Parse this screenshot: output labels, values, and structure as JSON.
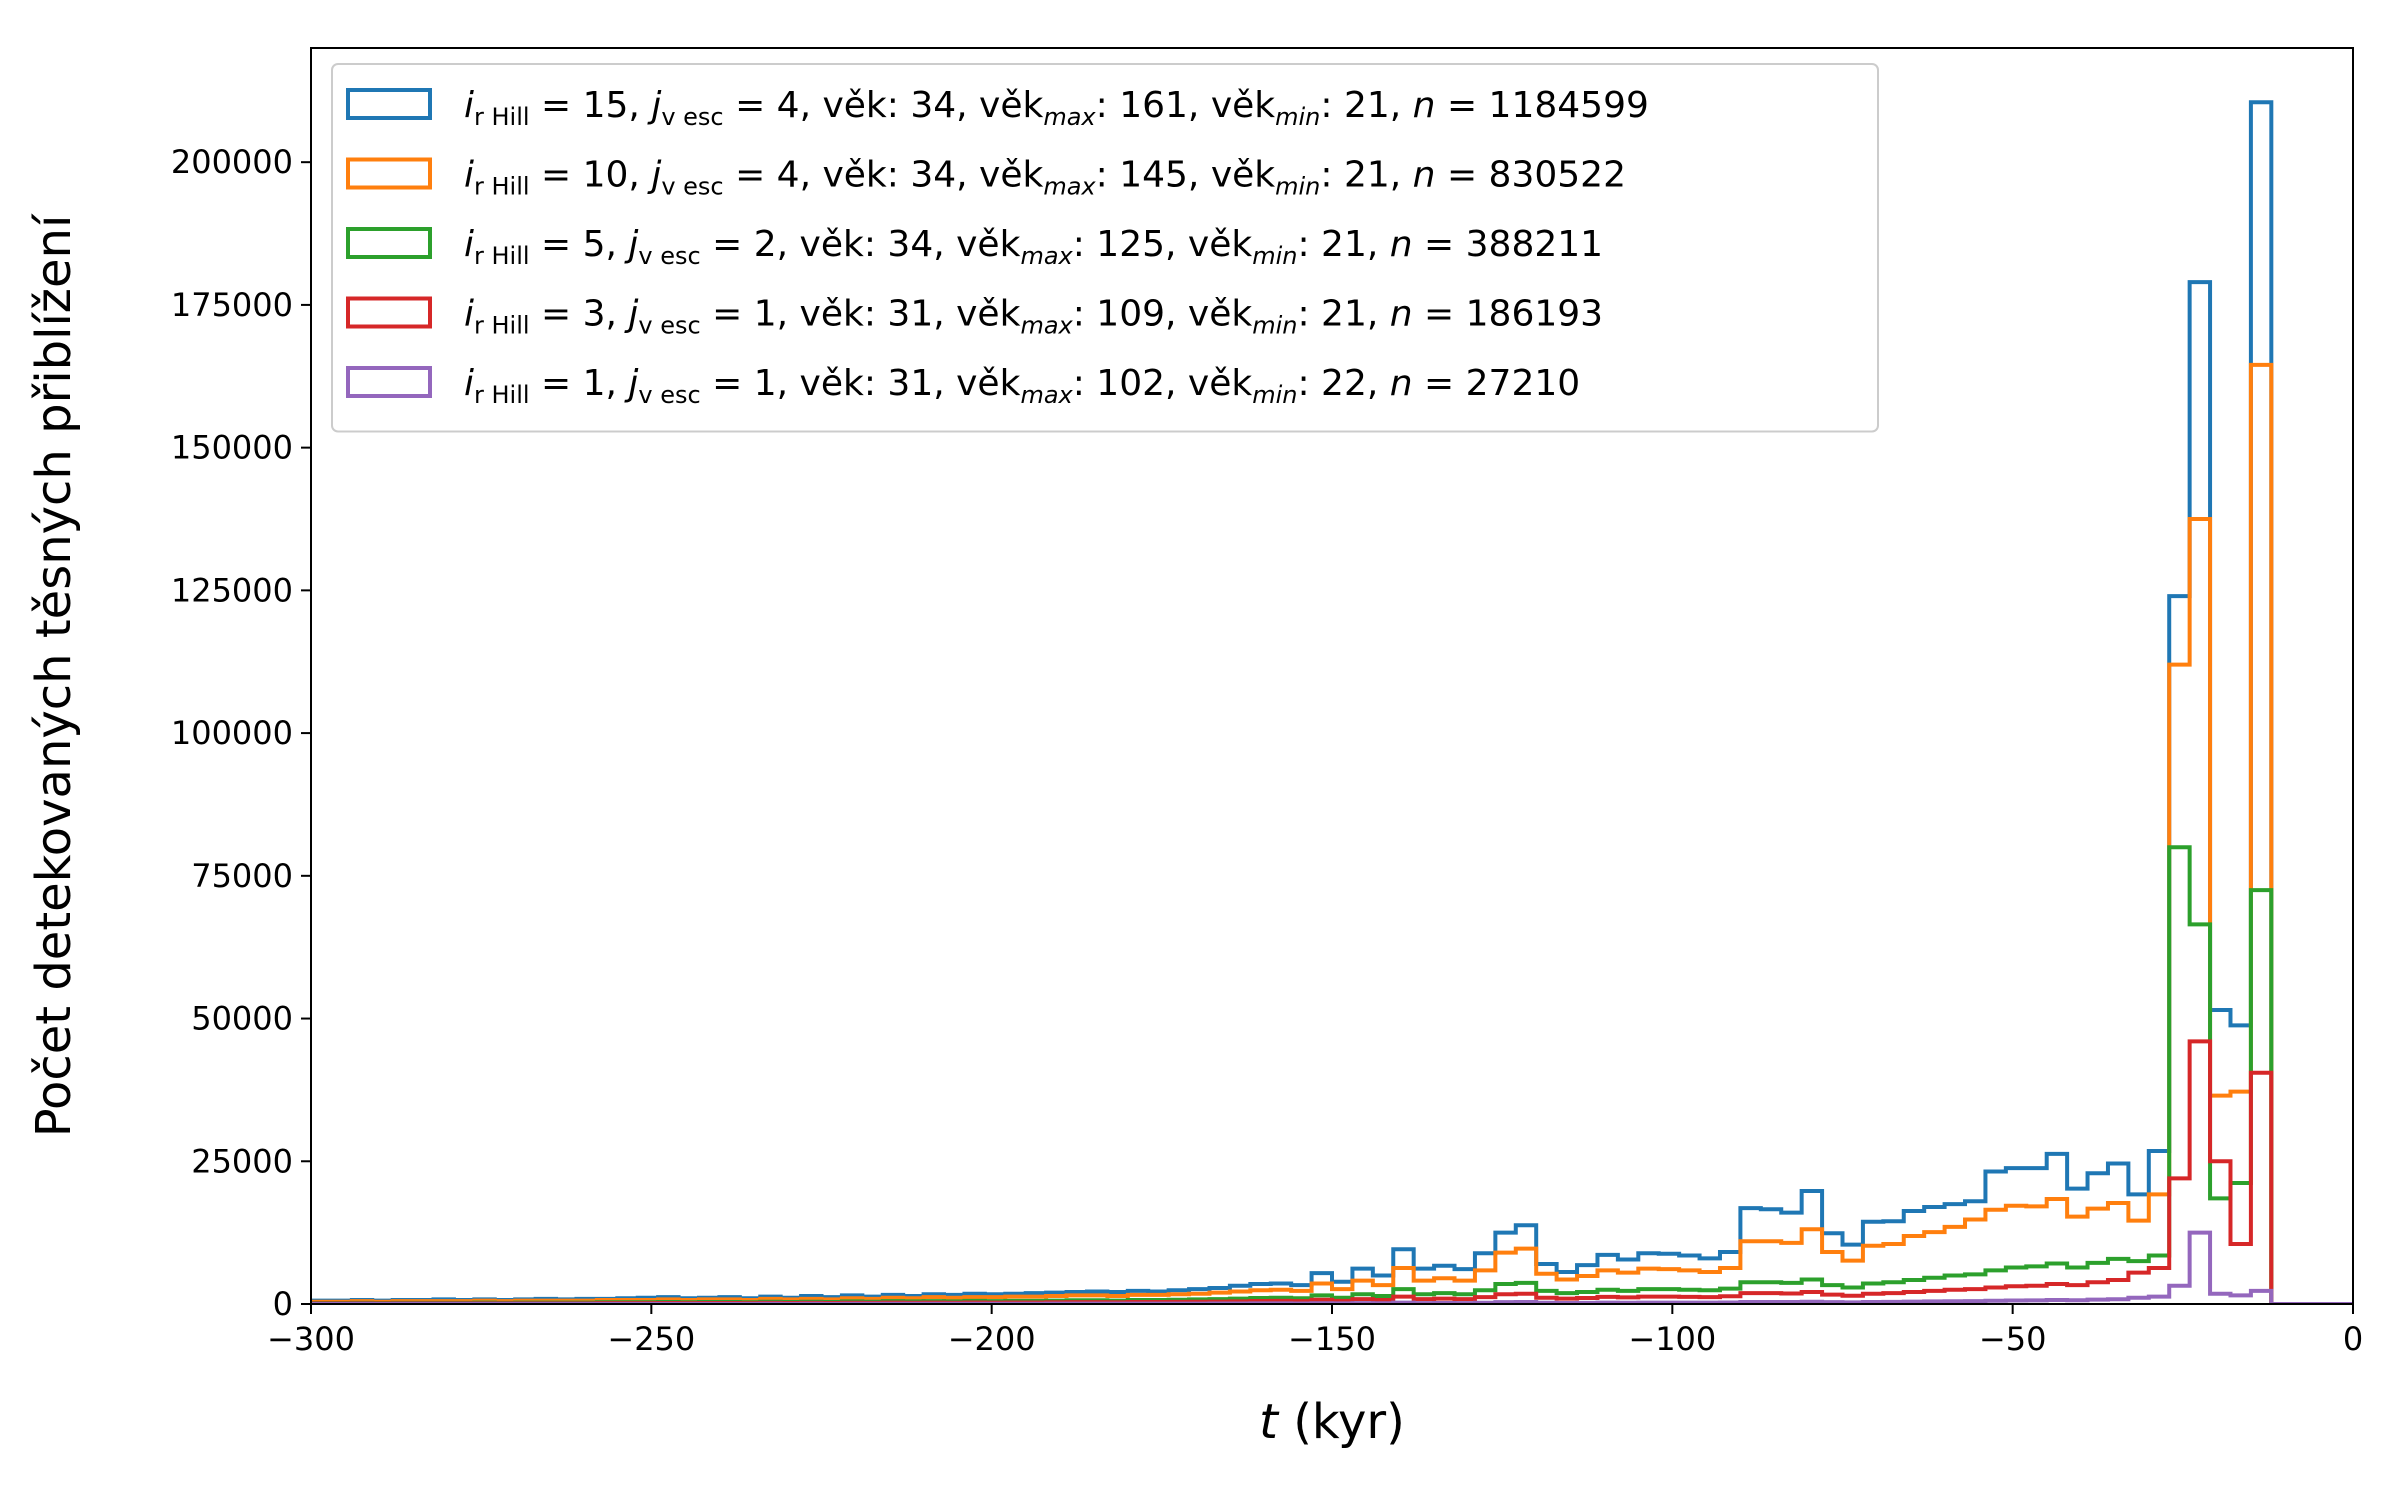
{
  "chart_data": {
    "type": "histogram-step",
    "title": "",
    "xlabel_var": "t",
    "xlabel_unit": "(kyr)",
    "ylabel": "Počet detekovaných těsných přiblížení",
    "xlim": [
      -300,
      0
    ],
    "ylim": [
      0,
      220000
    ],
    "x_ticks": [
      -300,
      -250,
      -200,
      -150,
      -100,
      -50,
      0
    ],
    "x_tick_labels": [
      "−300",
      "−250",
      "−200",
      "−150",
      "−100",
      "−50",
      "0"
    ],
    "y_ticks": [
      0,
      25000,
      50000,
      75000,
      100000,
      125000,
      150000,
      175000,
      200000
    ],
    "y_tick_labels": [
      "0",
      "25000",
      "50000",
      "75000",
      "100000",
      "125000",
      "150000",
      "175000",
      "200000"
    ],
    "legend_position": "upper-left",
    "bin_edges": [
      -300,
      -297,
      -294,
      -291,
      -288,
      -285,
      -282,
      -279,
      -276,
      -273,
      -270,
      -267,
      -264,
      -261,
      -258,
      -255,
      -252,
      -249,
      -246,
      -243,
      -240,
      -237,
      -234,
      -231,
      -228,
      -225,
      -222,
      -219,
      -216,
      -213,
      -210,
      -207,
      -204,
      -201,
      -198,
      -195,
      -192,
      -189,
      -186,
      -183,
      -180,
      -177,
      -174,
      -171,
      -168,
      -165,
      -162,
      -159,
      -156,
      -153,
      -150,
      -147,
      -144,
      -141,
      -138,
      -135,
      -132,
      -129,
      -126,
      -123,
      -120,
      -117,
      -114,
      -111,
      -108,
      -105,
      -102,
      -99,
      -96,
      -93,
      -90,
      -87,
      -84,
      -81,
      -78,
      -75,
      -72,
      -69,
      -66,
      -63,
      -60,
      -57,
      -54,
      -51,
      -48,
      -45,
      -42,
      -39,
      -36,
      -33,
      -30,
      -27,
      -24,
      -21,
      -18,
      -15,
      -12,
      -9,
      -6,
      -3,
      0
    ],
    "series": [
      {
        "name_prefix": "i",
        "name_sub": "r Hill",
        "name_main": " = 15, ",
        "name_j": "j",
        "name_jsub": "v esc",
        "name_rest1": " = 4, věk:  34, věk",
        "name_max": "max",
        "name_rest2": ": 161, věk",
        "name_min": "min",
        "name_rest3": ": 21, ",
        "name_n": "n",
        "name_rest4": " = 1184599",
        "color": "#1f77b4",
        "values": [
          600,
          600,
          700,
          600,
          700,
          700,
          800,
          700,
          800,
          700,
          800,
          900,
          800,
          900,
          900,
          1000,
          1100,
          1200,
          1000,
          1100,
          1200,
          1000,
          1300,
          1100,
          1400,
          1200,
          1500,
          1300,
          1600,
          1400,
          1700,
          1600,
          1800,
          1700,
          1800,
          1900,
          2000,
          2100,
          2200,
          2100,
          2300,
          2200,
          2400,
          2600,
          2800,
          3200,
          3500,
          3600,
          3300,
          5400,
          3900,
          6200,
          5000,
          9600,
          6200,
          6700,
          6100,
          8900,
          12500,
          13800,
          7000,
          5600,
          6800,
          8600,
          7800,
          8900,
          8800,
          8500,
          8000,
          9100,
          16800,
          16600,
          16000,
          19800,
          12400,
          10400,
          14400,
          14500,
          16300,
          17000,
          17500,
          18000,
          23200,
          23800,
          23800,
          26300,
          20200,
          22900,
          24600,
          19200,
          26800,
          124000,
          179000,
          51500,
          48800,
          210500,
          0,
          0,
          0,
          0,
          0,
          0,
          0,
          0,
          0
        ]
      },
      {
        "name_prefix": "i",
        "name_sub": "r Hill",
        "name_main": " = 10, ",
        "name_j": "j",
        "name_jsub": "v esc",
        "name_rest1": " = 4, věk:  34, věk",
        "name_max": "max",
        "name_rest2": ": 145, věk",
        "name_min": "min",
        "name_rest3": ": 21, ",
        "name_n": "n",
        "name_rest4": " = 830522",
        "color": "#ff7f0e",
        "values": [
          400,
          400,
          500,
          400,
          500,
          500,
          500,
          500,
          600,
          500,
          600,
          600,
          600,
          600,
          700,
          700,
          700,
          800,
          700,
          800,
          800,
          700,
          900,
          800,
          900,
          800,
          1000,
          900,
          1100,
          1000,
          1200,
          1100,
          1200,
          1200,
          1300,
          1300,
          1400,
          1500,
          1500,
          1400,
          1600,
          1600,
          1700,
          1800,
          2000,
          2200,
          2400,
          2500,
          2300,
          3600,
          2600,
          4100,
          3300,
          6300,
          4100,
          4500,
          4100,
          5900,
          9000,
          9700,
          5300,
          4300,
          4900,
          5900,
          5500,
          6200,
          6100,
          5900,
          5600,
          6300,
          11000,
          11000,
          10700,
          13100,
          9100,
          7600,
          10200,
          10500,
          11900,
          12600,
          13500,
          14800,
          16500,
          17200,
          17100,
          18400,
          15300,
          16700,
          17700,
          14600,
          19200,
          112000,
          137500,
          36500,
          37200,
          164500,
          0,
          0,
          0,
          0,
          0,
          0,
          0,
          0,
          0
        ]
      },
      {
        "name_prefix": "i",
        "name_sub": "r Hill",
        "name_main": " =  5, ",
        "name_j": "j",
        "name_jsub": "v esc",
        "name_rest1": " = 2, věk:  34, věk",
        "name_max": "max",
        "name_rest2": ": 125, věk",
        "name_min": "min",
        "name_rest3": ": 21, ",
        "name_n": "n",
        "name_rest4": " = 388211",
        "color": "#2ca02c",
        "values": [
          150,
          150,
          200,
          150,
          200,
          200,
          200,
          200,
          250,
          200,
          250,
          250,
          250,
          250,
          300,
          300,
          300,
          350,
          300,
          350,
          350,
          300,
          400,
          350,
          400,
          350,
          450,
          400,
          500,
          450,
          500,
          450,
          550,
          500,
          550,
          550,
          600,
          650,
          650,
          600,
          700,
          700,
          750,
          800,
          850,
          950,
          1050,
          1100,
          1000,
          1500,
          1100,
          1700,
          1400,
          2600,
          1700,
          1900,
          1700,
          2400,
          3500,
          3700,
          2300,
          1900,
          2100,
          2500,
          2300,
          2600,
          2600,
          2500,
          2400,
          2700,
          3800,
          3800,
          3700,
          4300,
          3300,
          2900,
          3600,
          3800,
          4200,
          4600,
          5000,
          5200,
          5900,
          6400,
          6600,
          7100,
          6400,
          7200,
          7900,
          7500,
          8500,
          80000,
          66500,
          18500,
          21200,
          72500,
          0,
          0,
          0,
          0,
          0,
          0,
          0,
          0,
          0
        ]
      },
      {
        "name_prefix": "i",
        "name_sub": "r Hill",
        "name_main": " =  3, ",
        "name_j": "j",
        "name_jsub": "v esc",
        "name_rest1": " = 1, věk:  31, věk",
        "name_max": "max",
        "name_rest2": ": 109, věk",
        "name_min": "min",
        "name_rest3": ": 21, ",
        "name_n": "n",
        "name_rest4": " = 186193",
        "color": "#d62728",
        "values": [
          80,
          80,
          100,
          80,
          100,
          100,
          100,
          100,
          120,
          100,
          120,
          120,
          120,
          120,
          150,
          150,
          150,
          170,
          150,
          170,
          170,
          150,
          200,
          170,
          200,
          170,
          220,
          200,
          250,
          220,
          250,
          220,
          270,
          250,
          270,
          270,
          300,
          320,
          320,
          300,
          350,
          350,
          370,
          400,
          420,
          470,
          520,
          550,
          500,
          750,
          550,
          850,
          700,
          1300,
          850,
          950,
          850,
          1200,
          1700,
          1800,
          1100,
          950,
          1050,
          1250,
          1150,
          1300,
          1300,
          1250,
          1200,
          1350,
          1900,
          1900,
          1850,
          2100,
          1650,
          1450,
          1800,
          1900,
          2100,
          2300,
          2500,
          2600,
          2900,
          3100,
          3200,
          3500,
          3300,
          3800,
          4200,
          5500,
          6300,
          22000,
          46000,
          25000,
          10500,
          40500,
          0,
          0,
          0,
          0,
          0,
          0,
          0,
          0,
          0
        ]
      },
      {
        "name_prefix": "i",
        "name_sub": "r Hill",
        "name_main": " =  1, ",
        "name_j": "j",
        "name_jsub": "v esc",
        "name_rest1": " = 1, věk:  31, věk",
        "name_max": "max",
        "name_rest2": ": 102, věk",
        "name_min": "min",
        "name_rest3": ": 22, ",
        "name_n": "n",
        "name_rest4": " = 27210",
        "color": "#9467bd",
        "values": [
          10,
          10,
          15,
          10,
          15,
          15,
          15,
          15,
          20,
          15,
          20,
          20,
          20,
          20,
          25,
          25,
          25,
          30,
          25,
          30,
          30,
          25,
          35,
          30,
          35,
          30,
          40,
          35,
          45,
          40,
          45,
          40,
          50,
          45,
          50,
          50,
          55,
          60,
          60,
          55,
          65,
          65,
          70,
          75,
          80,
          90,
          100,
          105,
          95,
          140,
          105,
          160,
          130,
          240,
          160,
          180,
          160,
          220,
          320,
          340,
          210,
          180,
          200,
          240,
          220,
          250,
          250,
          240,
          230,
          260,
          360,
          360,
          350,
          400,
          320,
          280,
          350,
          370,
          410,
          450,
          490,
          510,
          570,
          610,
          640,
          700,
          660,
          760,
          840,
          1100,
          1300,
          3200,
          12500,
          1800,
          1500,
          2300,
          0,
          0,
          0,
          0,
          0,
          0,
          0,
          0,
          0
        ]
      }
    ]
  }
}
